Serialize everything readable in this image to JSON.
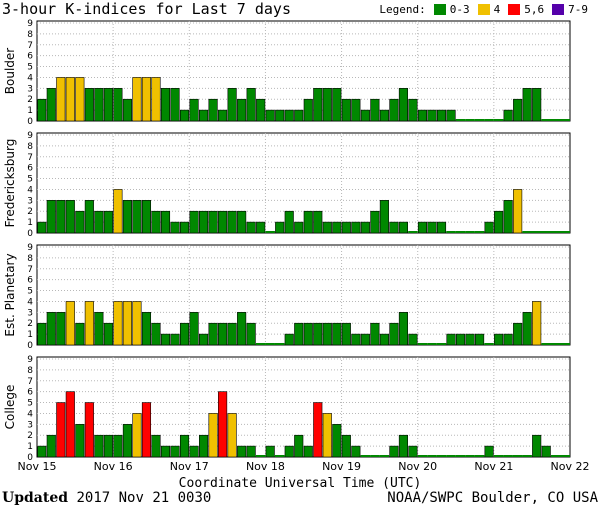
{
  "chart_data": {
    "type": "bar",
    "title": "3-hour K-indices for Last 7 days",
    "legend": {
      "label": "Legend:",
      "items": [
        {
          "label": "0-3",
          "color": "#008800"
        },
        {
          "label": "4",
          "color": "#f0c000"
        },
        {
          "label": "5,6",
          "color": "#ff0000"
        },
        {
          "label": "7-9",
          "color": "#5500aa"
        }
      ]
    },
    "xlabel": "Coordinate Universal Time (UTC)",
    "x_ticks": [
      "Nov 15",
      "Nov 16",
      "Nov 17",
      "Nov 18",
      "Nov 19",
      "Nov 20",
      "Nov 21",
      "Nov 22"
    ],
    "y_ticks": [
      "0",
      "1",
      "2",
      "3",
      "4",
      "5",
      "6",
      "7",
      "8",
      "9"
    ],
    "ylim": [
      0,
      9
    ],
    "grid": true,
    "panels": [
      {
        "name": "Boulder",
        "values": [
          2,
          3,
          4,
          4,
          4,
          3,
          3,
          3,
          3,
          2,
          4,
          4,
          4,
          3,
          3,
          1,
          2,
          1,
          2,
          1,
          3,
          2,
          3,
          2,
          1,
          1,
          1,
          1,
          2,
          3,
          3,
          3,
          2,
          2,
          1,
          2,
          1,
          2,
          3,
          2,
          1,
          1,
          1,
          1,
          0,
          0,
          0,
          0,
          0,
          1,
          2,
          3,
          3
        ]
      },
      {
        "name": "Fredericksburg",
        "values": [
          1,
          3,
          3,
          3,
          2,
          3,
          2,
          2,
          4,
          3,
          3,
          3,
          2,
          2,
          1,
          1,
          2,
          2,
          2,
          2,
          2,
          2,
          1,
          1,
          0,
          1,
          2,
          1,
          2,
          2,
          1,
          1,
          1,
          1,
          1,
          2,
          3,
          1,
          1,
          0,
          1,
          1,
          1,
          0,
          0,
          0,
          0,
          1,
          2,
          3,
          4
        ]
      },
      {
        "name": "Est. Planetary",
        "values": [
          2,
          3,
          3,
          4,
          2,
          4,
          3,
          2,
          4,
          4,
          4,
          3,
          2,
          1,
          1,
          2,
          3,
          1,
          2,
          2,
          2,
          3,
          2,
          0,
          0,
          0,
          1,
          2,
          2,
          2,
          2,
          2,
          2,
          1,
          1,
          2,
          1,
          2,
          3,
          1,
          0,
          0,
          0,
          1,
          1,
          1,
          1,
          0,
          1,
          1,
          2,
          3,
          4
        ]
      },
      {
        "name": "College",
        "values": [
          1,
          2,
          5,
          6,
          3,
          5,
          2,
          2,
          2,
          3,
          4,
          5,
          2,
          1,
          1,
          2,
          1,
          2,
          4,
          6,
          4,
          1,
          1,
          0,
          1,
          0,
          1,
          2,
          1,
          5,
          4,
          3,
          2,
          1,
          0,
          0,
          0,
          1,
          2,
          1,
          0,
          0,
          0,
          0,
          0,
          0,
          0,
          1,
          0,
          0,
          0,
          0,
          2,
          1
        ]
      }
    ]
  },
  "footer": {
    "updated_label": "Updated",
    "updated_value": "2017 Nov 21 0030",
    "source": "NOAA/SWPC Boulder, CO USA"
  }
}
